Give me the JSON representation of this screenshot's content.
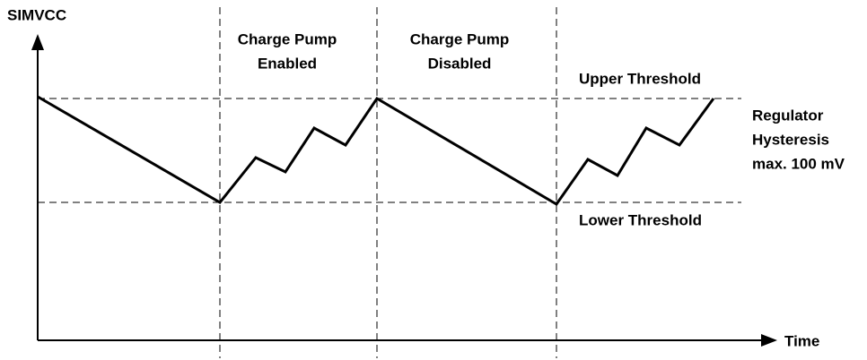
{
  "y_axis_label": "SIMVCC",
  "x_axis_label": "Time",
  "phases": [
    {
      "lines": [
        "Charge Pump",
        "Enabled"
      ]
    },
    {
      "lines": [
        "Charge Pump",
        "Disabled"
      ]
    }
  ],
  "thresholds": {
    "upper": "Upper Threshold",
    "lower": "Lower Threshold"
  },
  "annotation": {
    "lines": [
      "Regulator",
      "Hysteresis",
      "max. 100 mV"
    ]
  }
}
